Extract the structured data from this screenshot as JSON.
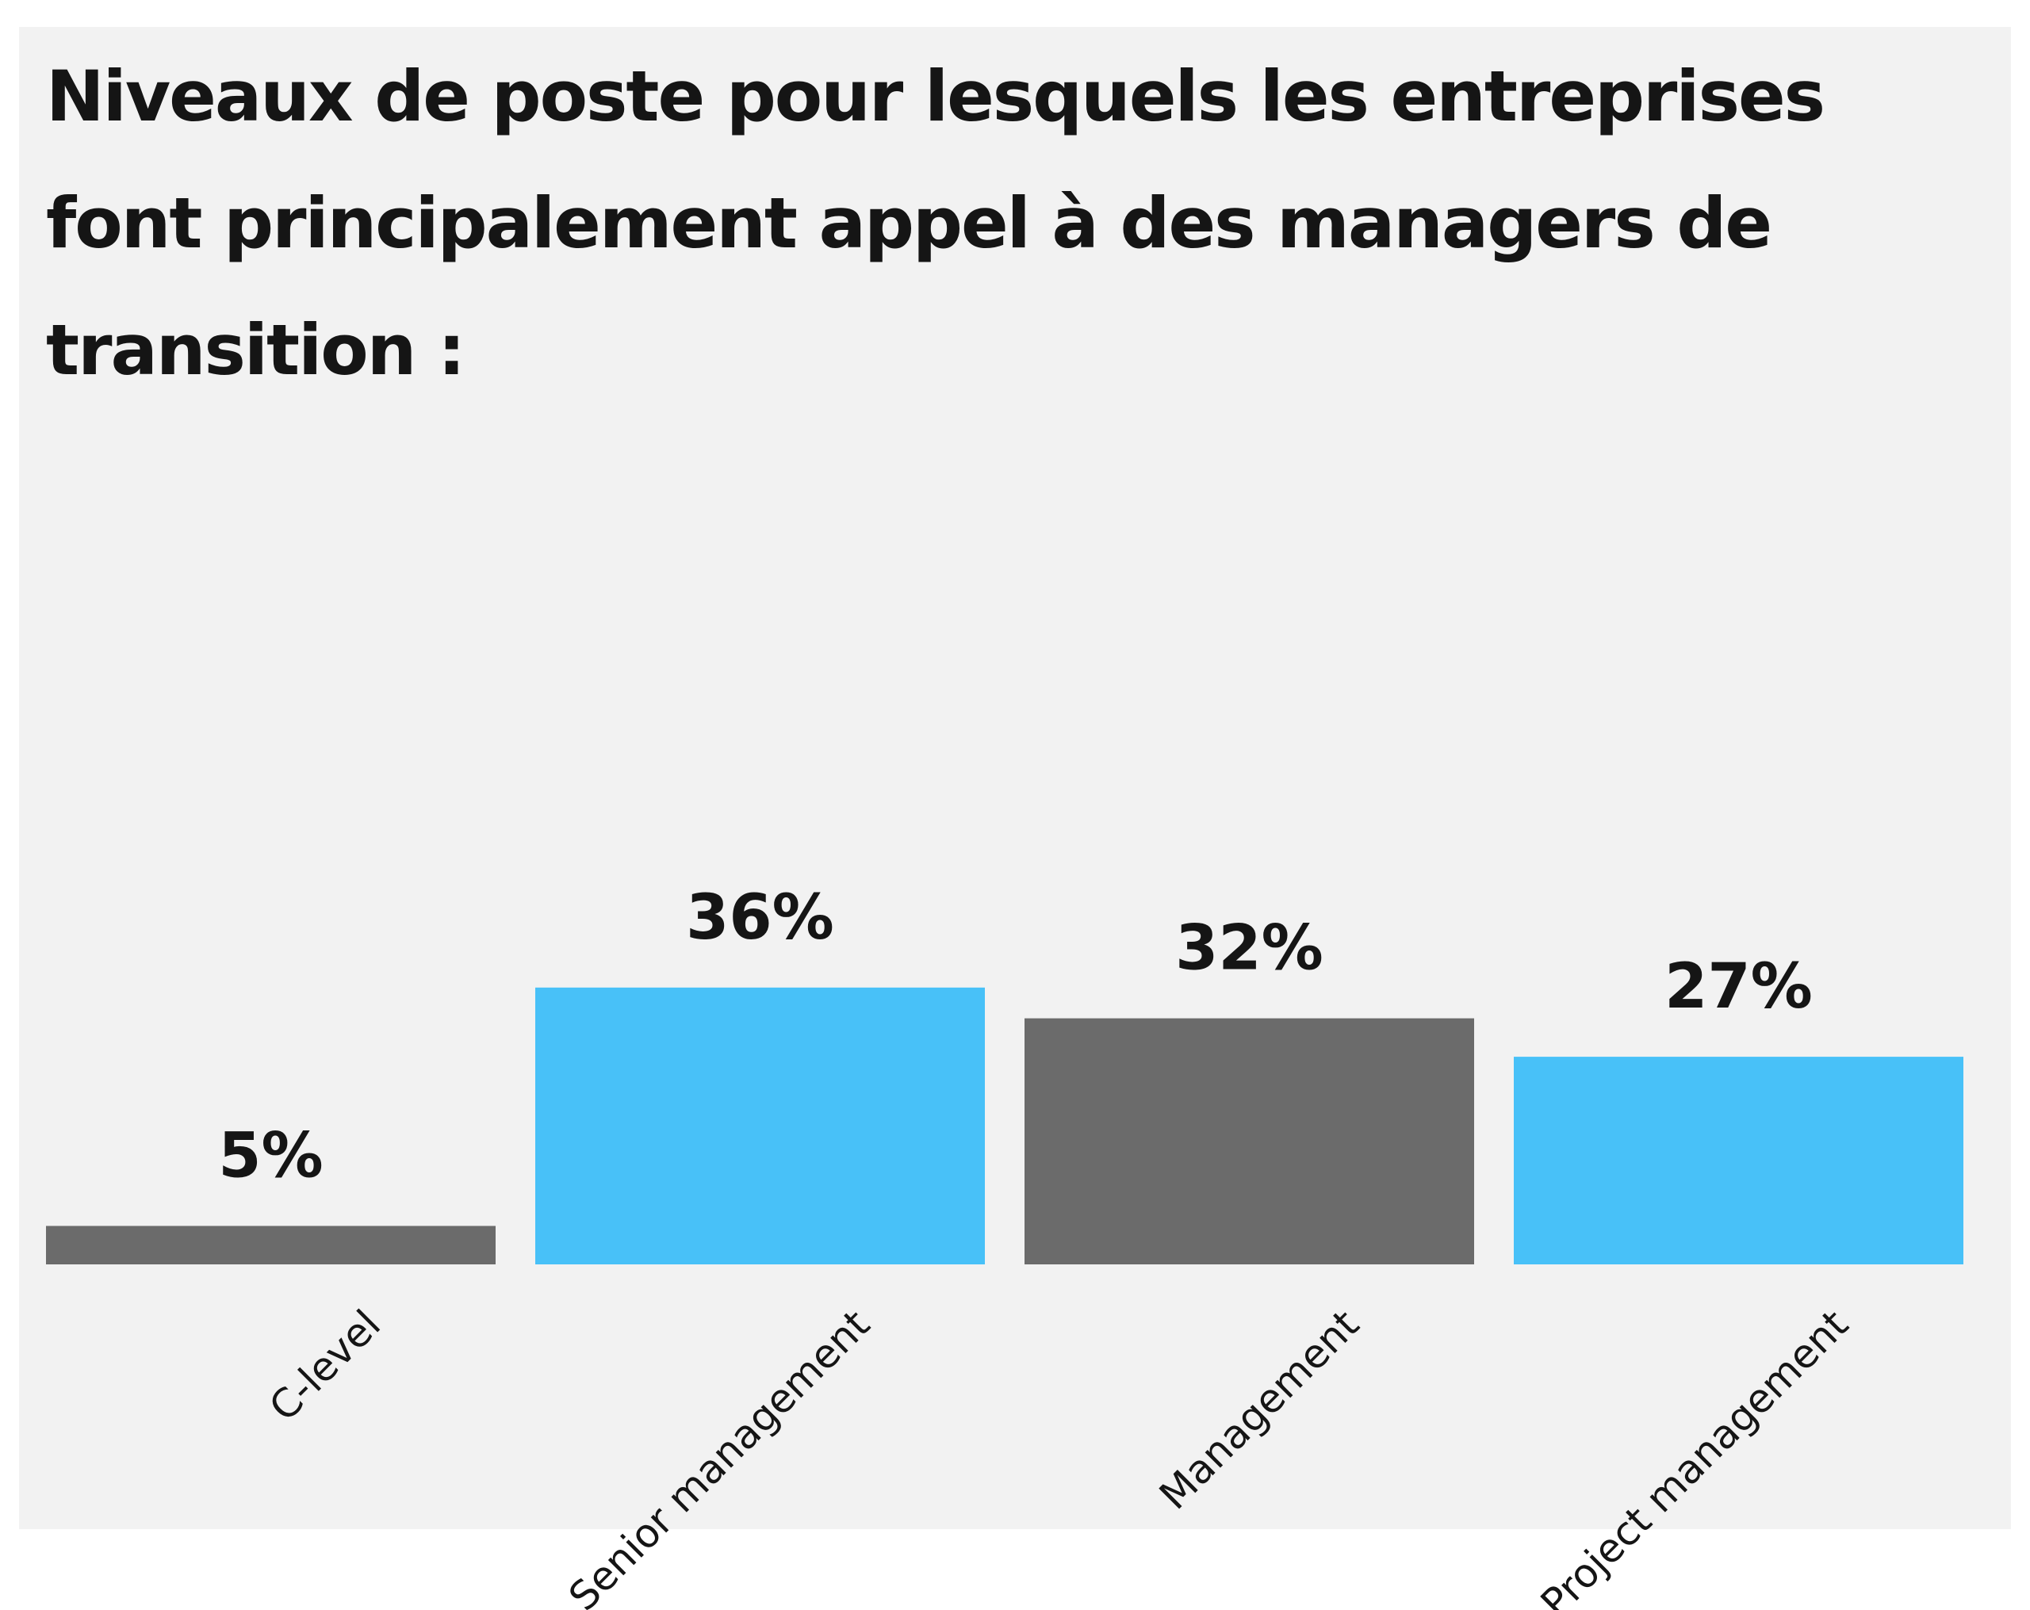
{
  "chart_data": {
    "type": "bar",
    "title": "Niveaux de poste pour lesquels les entreprises font principalement appel à des managers de transition :",
    "categories": [
      "C-level",
      "Senior management",
      "Management",
      "Project management"
    ],
    "values": [
      5,
      36,
      32,
      27
    ],
    "value_labels": [
      "5%",
      "36%",
      "32%",
      "27%"
    ],
    "unit": "%",
    "colors": [
      "#6b6b6b",
      "#48c1f8",
      "#6b6b6b",
      "#48c1f8"
    ],
    "ylim": [
      0,
      100
    ],
    "grid": false,
    "legend": "none",
    "xlabel": "",
    "ylabel": ""
  }
}
